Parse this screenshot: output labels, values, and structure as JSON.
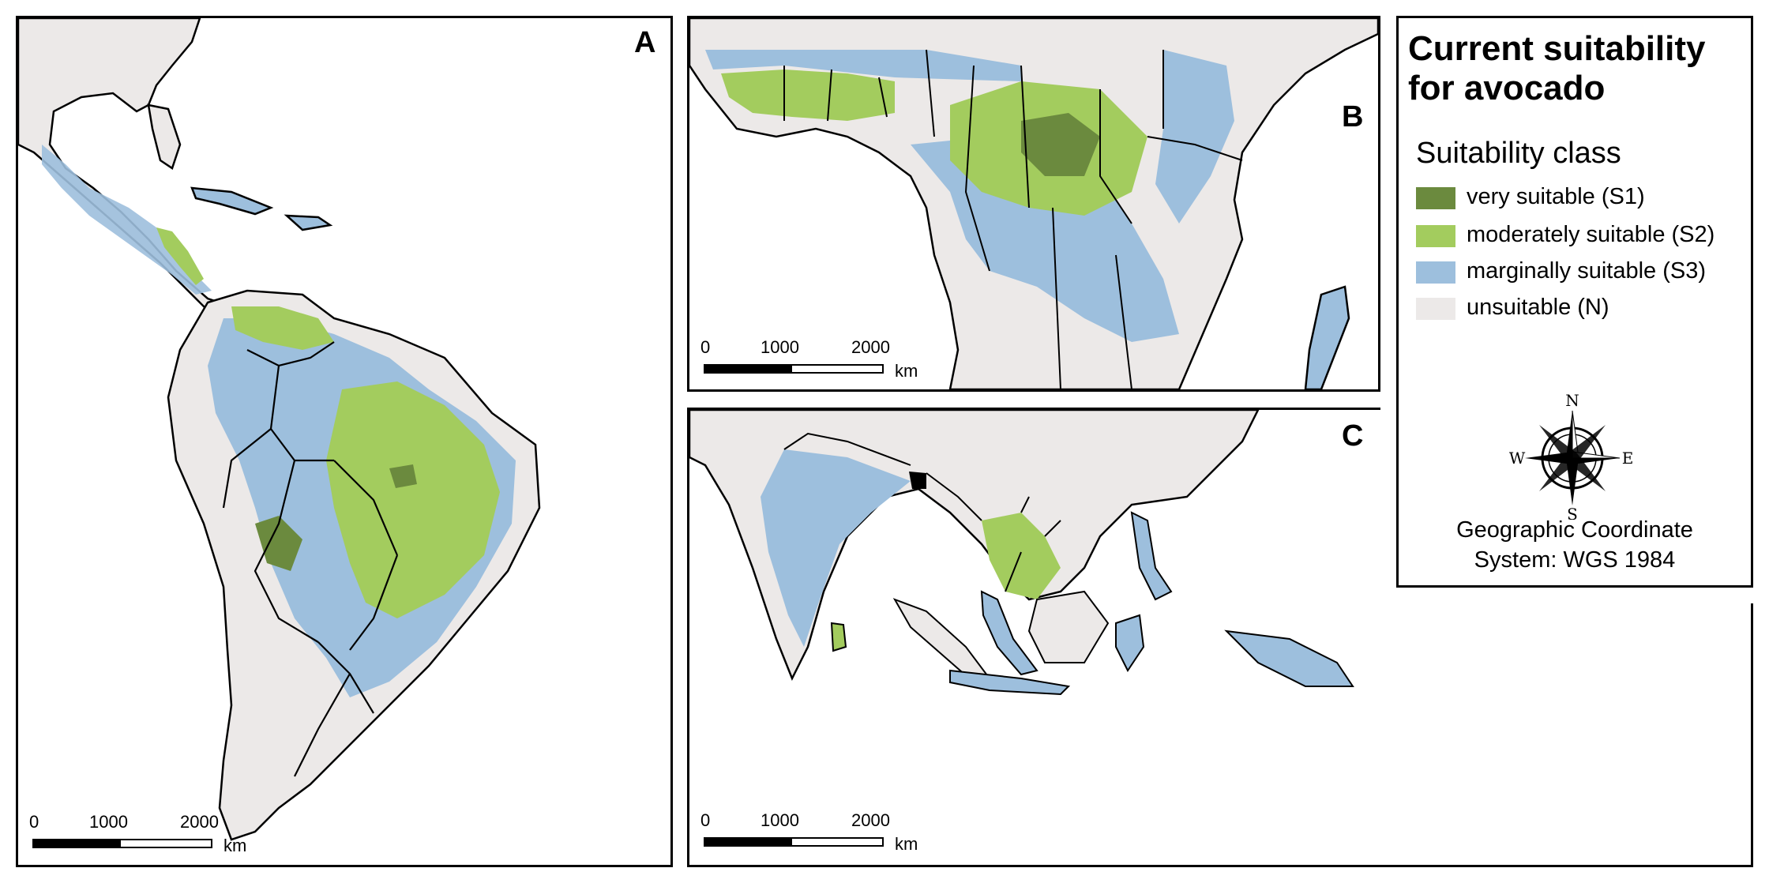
{
  "colors": {
    "s1": "#6b8a3e",
    "s2": "#a3cc5e",
    "s3": "#9dbfdd",
    "n": "#ece9e8",
    "water": "#ffffff",
    "border": "#000000"
  },
  "panels": [
    {
      "id": "A",
      "letter": "A",
      "scale_ticks": [
        "0",
        "1000",
        "2000"
      ],
      "scale_unit": "km"
    },
    {
      "id": "B",
      "letter": "B",
      "scale_ticks": [
        "0",
        "1000",
        "2000"
      ],
      "scale_unit": "km"
    },
    {
      "id": "C",
      "letter": "C",
      "scale_ticks": [
        "0",
        "1000",
        "2000"
      ],
      "scale_unit": "km"
    }
  ],
  "legend": {
    "title_line1": "Current suitability",
    "title_line2": "for avocado",
    "class_title": "Suitability class",
    "items": [
      {
        "label": "very suitable (S1)",
        "color": "#6b8a3e"
      },
      {
        "label": "moderately suitable (S2)",
        "color": "#a3cc5e"
      },
      {
        "label": "marginally suitable (S3)",
        "color": "#9dbfdd"
      },
      {
        "label": "unsuitable (N)",
        "color": "#ece9e8"
      }
    ],
    "compass": {
      "n": "N",
      "s": "S",
      "e": "E",
      "w": "W",
      "icon": "compass-rose-icon"
    },
    "crs_line1": "Geographic Coordinate",
    "crs_line2": "System: WGS 1984"
  }
}
